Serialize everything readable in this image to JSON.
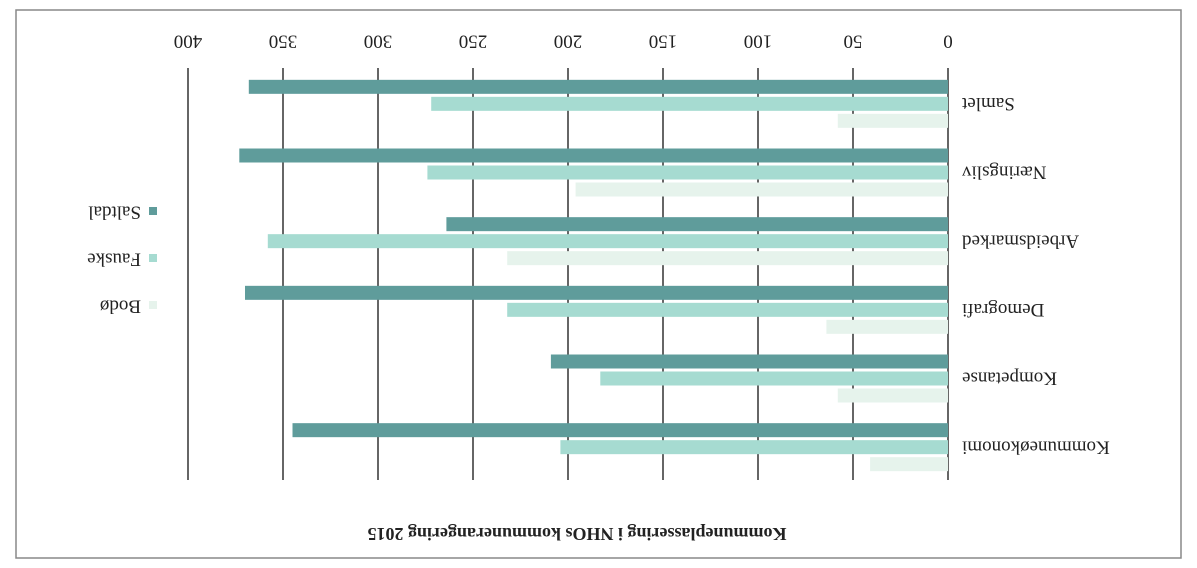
{
  "chart_data": {
    "type": "barh",
    "title": "Kommuneplassering i NHOs kommunerangering 2015",
    "categories": [
      "Kommuneøkonomi",
      "Kompetanse",
      "Demografi",
      "Arbeidsmarked",
      "Næringsliv",
      "Samlet"
    ],
    "series": [
      {
        "name": "Bodø",
        "color": "#e6f3ec",
        "values": [
          41,
          58,
          64,
          232,
          196,
          58
        ]
      },
      {
        "name": "Fauske",
        "color": "#a6dbd1",
        "values": [
          204,
          183,
          232,
          358,
          274,
          272
        ]
      },
      {
        "name": "Saltdal",
        "color": "#5f9c9b",
        "values": [
          345,
          209,
          370,
          264,
          373,
          368
        ]
      }
    ],
    "xlim": [
      0,
      400
    ],
    "xticks": [
      0,
      50,
      100,
      150,
      200,
      250,
      300,
      350,
      400
    ],
    "grid": true,
    "legend": "right"
  }
}
